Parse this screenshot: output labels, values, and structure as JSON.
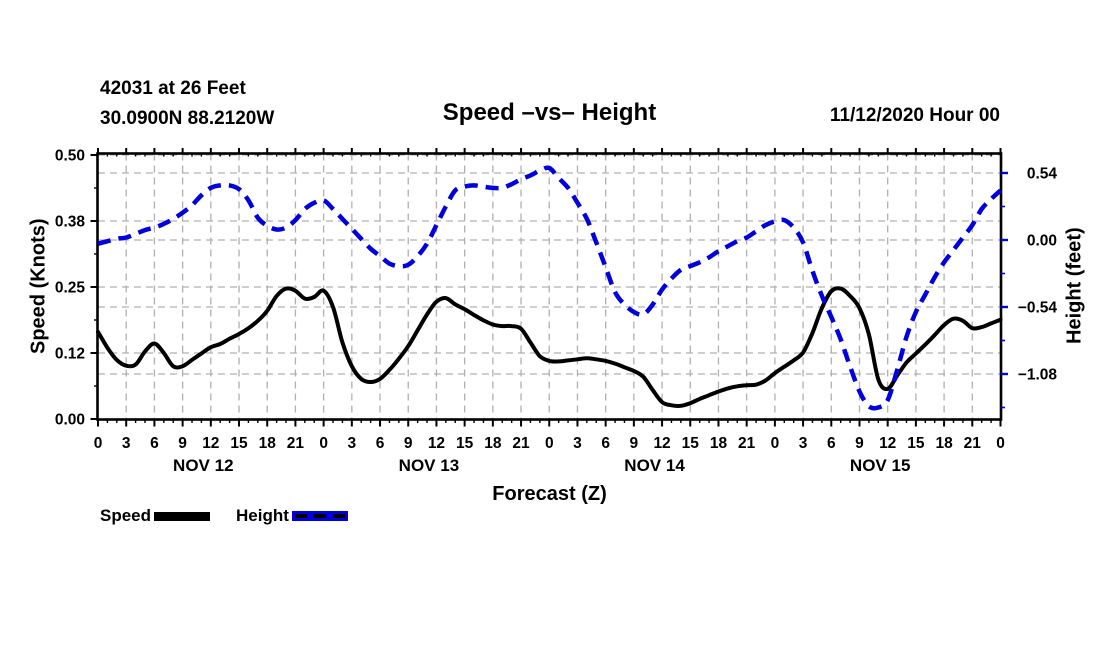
{
  "header": {
    "station": "42031 at 26 Feet",
    "coordinates": "30.0900N 88.2120W",
    "title": "Speed –vs– Height",
    "datetime": "11/12/2020 Hour 00"
  },
  "chart_data": {
    "type": "line",
    "title": "Speed –vs– Height",
    "xlabel": "Forecast (Z)",
    "ylabel_left": "Speed (Knots)",
    "ylabel_right": "Height (feet)",
    "grid": true,
    "grid_color": "#b0b0b0",
    "x_axis": {
      "range_hours": [
        0,
        96
      ],
      "tick_hours": [
        0,
        3,
        6,
        9,
        12,
        15,
        18,
        21,
        24,
        27,
        30,
        33,
        36,
        39,
        42,
        45,
        48,
        51,
        54,
        57,
        60,
        63,
        66,
        69,
        72,
        75,
        78,
        81,
        84,
        87,
        90,
        93,
        96
      ],
      "tick_labels": [
        "0",
        "3",
        "6",
        "9",
        "12",
        "15",
        "18",
        "21",
        "0",
        "3",
        "6",
        "9",
        "12",
        "15",
        "18",
        "21",
        "0",
        "3",
        "6",
        "9",
        "12",
        "15",
        "18",
        "21",
        "0",
        "3",
        "6",
        "9",
        "12",
        "15",
        "18",
        "21",
        "0"
      ],
      "minor_tick_interval_hours": 1,
      "day_labels": [
        {
          "text": "NOV 12",
          "hour": 11.2
        },
        {
          "text": "NOV 13",
          "hour": 35.2
        },
        {
          "text": "NOV 14",
          "hour": 59.2
        },
        {
          "text": "NOV 15",
          "hour": 83.2
        }
      ]
    },
    "y_left": {
      "range": [
        0.0,
        0.5
      ],
      "ticks": [
        {
          "value": 0.5,
          "label": "0.50"
        },
        {
          "value": 0.375,
          "label": "0.38"
        },
        {
          "value": 0.25,
          "label": "0.25"
        },
        {
          "value": 0.125,
          "label": "0.12"
        },
        {
          "value": 0.0,
          "label": "0.00"
        }
      ],
      "minor_values": [
        0.0625,
        0.1875,
        0.3125,
        0.4375
      ]
    },
    "y_right": {
      "range": [
        -1.44,
        0.69
      ],
      "ticks": [
        {
          "value": 0.54,
          "label": "0.54"
        },
        {
          "value": 0.0,
          "label": "0.00"
        },
        {
          "value": -0.54,
          "label": "−0.54"
        },
        {
          "value": -1.08,
          "label": "−1.08"
        }
      ],
      "minor_values": [
        0.27,
        -0.27,
        -0.81,
        -1.35
      ],
      "tick_color": "#0000dd"
    },
    "series": [
      {
        "name": "Speed",
        "axis": "left",
        "units": "knots",
        "color": "#000000",
        "style": "solid",
        "x_start_hour": 0,
        "x_step_hours": 1,
        "values": [
          0.165,
          0.135,
          0.112,
          0.101,
          0.103,
          0.128,
          0.143,
          0.125,
          0.1,
          0.1,
          0.112,
          0.124,
          0.136,
          0.142,
          0.152,
          0.161,
          0.172,
          0.186,
          0.205,
          0.233,
          0.247,
          0.243,
          0.228,
          0.231,
          0.243,
          0.212,
          0.145,
          0.1,
          0.076,
          0.07,
          0.076,
          0.093,
          0.114,
          0.138,
          0.168,
          0.198,
          0.222,
          0.229,
          0.217,
          0.208,
          0.197,
          0.187,
          0.179,
          0.176,
          0.176,
          0.171,
          0.145,
          0.119,
          0.11,
          0.109,
          0.111,
          0.113,
          0.115,
          0.113,
          0.11,
          0.105,
          0.098,
          0.091,
          0.08,
          0.055,
          0.032,
          0.026,
          0.025,
          0.03,
          0.038,
          0.045,
          0.052,
          0.058,
          0.062,
          0.064,
          0.065,
          0.073,
          0.087,
          0.099,
          0.111,
          0.126,
          0.163,
          0.21,
          0.242,
          0.247,
          0.233,
          0.21,
          0.16,
          0.075,
          0.057,
          0.082,
          0.107,
          0.124,
          0.141,
          0.159,
          0.178,
          0.19,
          0.186,
          0.172,
          0.174,
          0.181,
          0.188
        ]
      },
      {
        "name": "Height",
        "axis": "right",
        "units": "feet",
        "color": "#0000dd",
        "style": "dashed",
        "x_start_hour": 0,
        "x_step_hours": 1,
        "values": [
          -0.03,
          -0.01,
          0.01,
          0.02,
          0.05,
          0.08,
          0.1,
          0.13,
          0.17,
          0.22,
          0.28,
          0.36,
          0.42,
          0.44,
          0.44,
          0.41,
          0.32,
          0.18,
          0.115,
          0.085,
          0.1,
          0.16,
          0.25,
          0.3,
          0.32,
          0.25,
          0.17,
          0.09,
          0.01,
          -0.07,
          -0.13,
          -0.19,
          -0.21,
          -0.2,
          -0.13,
          -0.03,
          0.12,
          0.27,
          0.4,
          0.43,
          0.44,
          0.43,
          0.42,
          0.42,
          0.45,
          0.49,
          0.52,
          0.56,
          0.58,
          0.5,
          0.42,
          0.3,
          0.17,
          -0.02,
          -0.22,
          -0.42,
          -0.52,
          -0.58,
          -0.6,
          -0.52,
          -0.4,
          -0.31,
          -0.24,
          -0.21,
          -0.18,
          -0.14,
          -0.09,
          -0.05,
          -0.01,
          0.02,
          0.07,
          0.12,
          0.15,
          0.16,
          0.1,
          -0.02,
          -0.25,
          -0.45,
          -0.62,
          -0.8,
          -1.02,
          -1.22,
          -1.34,
          -1.35,
          -1.29,
          -1.05,
          -0.78,
          -0.58,
          -0.44,
          -0.3,
          -0.18,
          -0.08,
          0.02,
          0.12,
          0.25,
          0.33,
          0.4
        ]
      }
    ],
    "legend": [
      {
        "label": "Speed",
        "style": "solid"
      },
      {
        "label": "Height",
        "style": "dashed"
      }
    ]
  }
}
